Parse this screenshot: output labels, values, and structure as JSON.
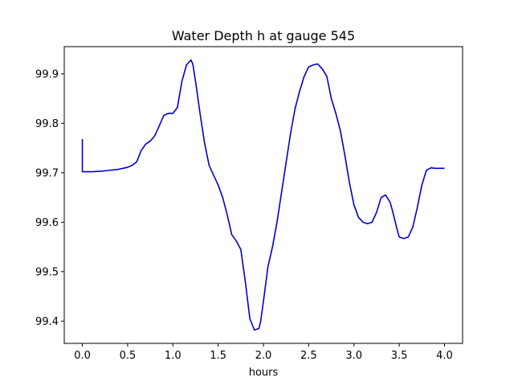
{
  "chart_data": {
    "type": "line",
    "title": "Water Depth h at gauge 545",
    "xlabel": "hours",
    "ylabel": "",
    "xlim": [
      -0.2,
      4.2
    ],
    "ylim": [
      99.355,
      99.955
    ],
    "xticks": [
      0.0,
      0.5,
      1.0,
      1.5,
      2.0,
      2.5,
      3.0,
      3.5,
      4.0
    ],
    "xtick_labels": [
      "0.0",
      "0.5",
      "1.0",
      "1.5",
      "2.0",
      "2.5",
      "3.0",
      "3.5",
      "4.0"
    ],
    "yticks": [
      99.4,
      99.5,
      99.6,
      99.7,
      99.8,
      99.9
    ],
    "ytick_labels": [
      "99.4",
      "99.5",
      "99.6",
      "99.7",
      "99.8",
      "99.9"
    ],
    "grid": false,
    "legend": "none",
    "colors": {
      "line": "#0000cc",
      "axes": "#000000",
      "background": "#ffffff"
    },
    "series": [
      {
        "x": [
          0.0,
          0.0,
          0.1,
          0.2,
          0.3,
          0.4,
          0.5,
          0.55,
          0.6,
          0.65,
          0.7,
          0.75,
          0.8,
          0.85,
          0.9,
          0.95,
          1.0,
          1.05,
          1.1,
          1.15,
          1.2,
          1.22,
          1.25,
          1.3,
          1.35,
          1.4,
          1.45,
          1.5,
          1.55,
          1.6,
          1.65,
          1.7,
          1.75,
          1.8,
          1.85,
          1.9,
          1.95,
          1.97,
          2.0,
          2.05,
          2.1,
          2.15,
          2.2,
          2.25,
          2.3,
          2.35,
          2.4,
          2.45,
          2.5,
          2.55,
          2.6,
          2.65,
          2.7,
          2.75,
          2.8,
          2.85,
          2.9,
          2.95,
          3.0,
          3.05,
          3.1,
          3.15,
          3.2,
          3.25,
          3.3,
          3.35,
          3.4,
          3.43,
          3.47,
          3.5,
          3.55,
          3.6,
          3.65,
          3.7,
          3.75,
          3.8,
          3.85,
          3.9,
          3.95,
          4.0
        ],
        "y": [
          99.768,
          99.702,
          99.702,
          99.703,
          99.705,
          99.707,
          99.711,
          99.715,
          99.722,
          99.745,
          99.758,
          99.764,
          99.775,
          99.795,
          99.816,
          99.82,
          99.82,
          99.832,
          99.885,
          99.918,
          99.928,
          99.92,
          99.885,
          99.82,
          99.76,
          99.715,
          99.695,
          99.675,
          99.65,
          99.615,
          99.575,
          99.562,
          99.545,
          99.48,
          99.405,
          99.382,
          99.385,
          99.4,
          99.44,
          99.51,
          99.55,
          99.6,
          99.66,
          99.72,
          99.78,
          99.83,
          99.865,
          99.895,
          99.914,
          99.918,
          99.92,
          99.91,
          99.895,
          99.85,
          99.82,
          99.785,
          99.735,
          99.68,
          99.635,
          99.61,
          99.6,
          99.597,
          99.6,
          99.62,
          99.65,
          99.655,
          99.64,
          99.62,
          99.59,
          99.57,
          99.567,
          99.57,
          99.59,
          99.63,
          99.675,
          99.705,
          99.71,
          99.709,
          99.709,
          99.709
        ]
      }
    ]
  }
}
